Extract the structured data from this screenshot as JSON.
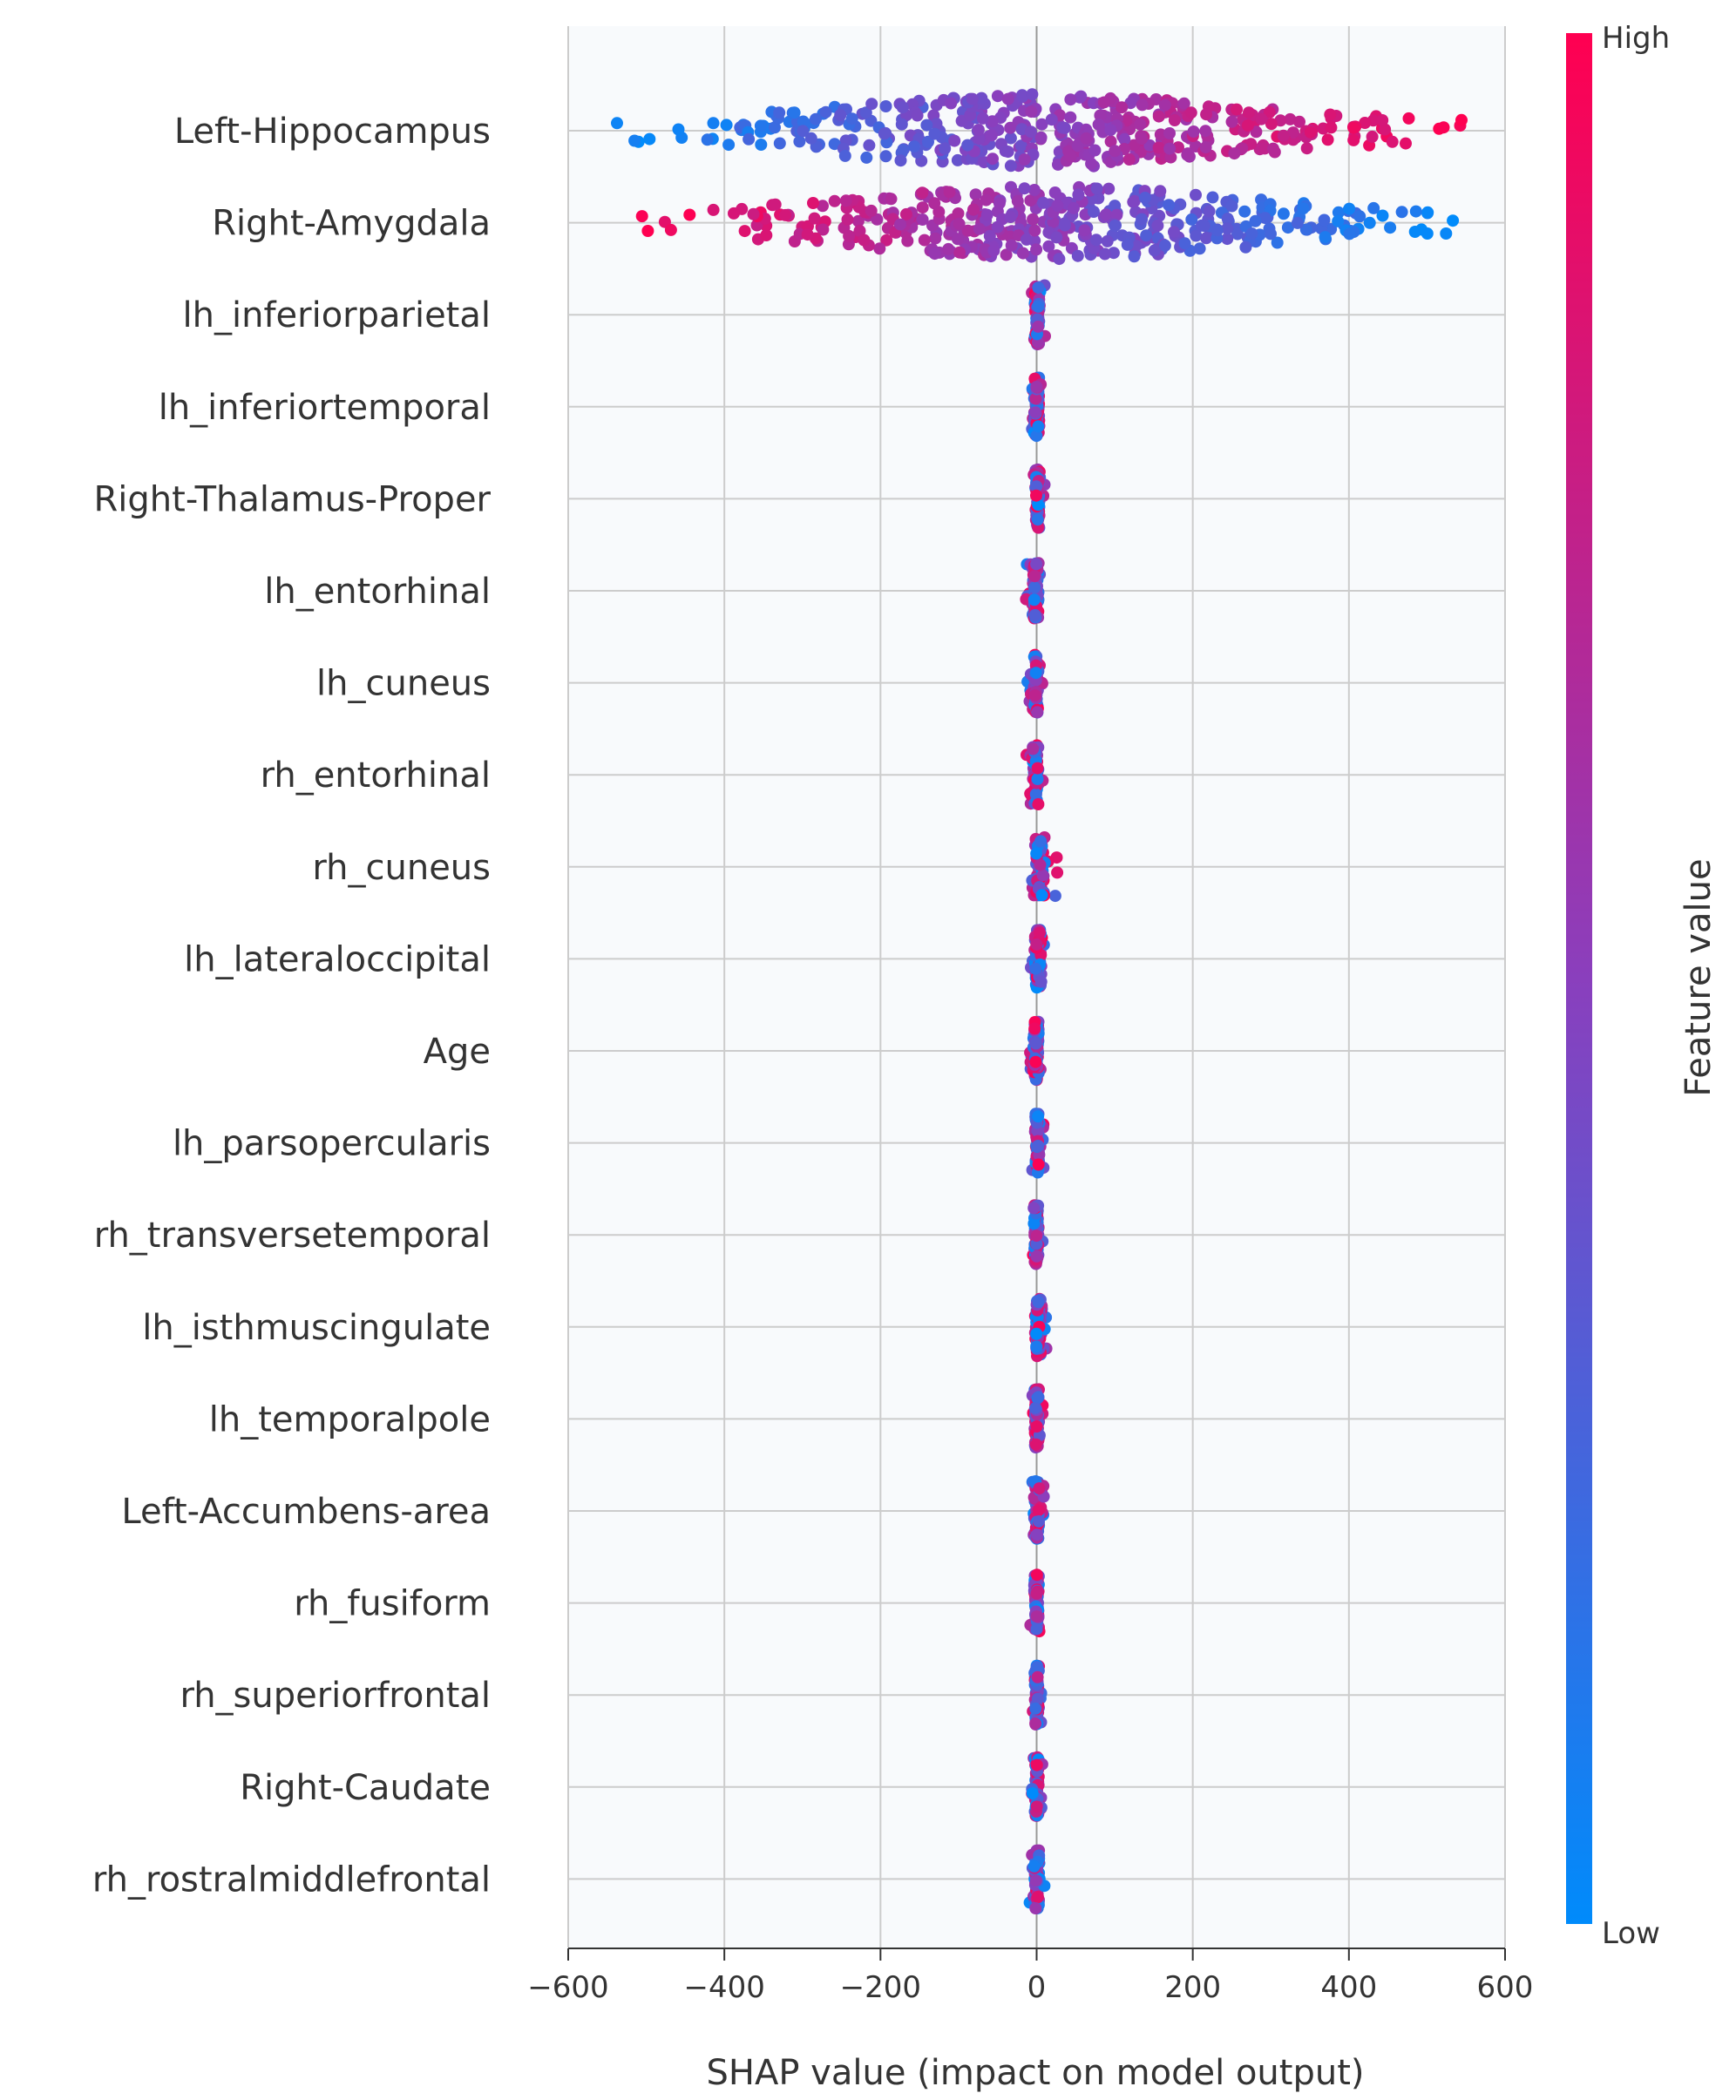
{
  "chart_data": {
    "type": "scatter",
    "subtype": "shap-beeswarm",
    "xlabel": "SHAP value (impact on model output)",
    "xlim": [
      -600,
      600
    ],
    "xticks": [
      -600,
      -400,
      -200,
      0,
      200,
      400,
      600
    ],
    "xtick_labels": [
      "−600",
      "−400",
      "−200",
      "0",
      "200",
      "400",
      "600"
    ],
    "grid": true,
    "colorbar": {
      "label": "Feature value",
      "high_label": "High",
      "low_label": "Low",
      "low_color": "#008bfb",
      "mid_color": "#8a3fbd",
      "high_color": "#ff0051"
    },
    "features": [
      {
        "name": "Left-Hippocampus",
        "range": [
          -550,
          560
        ],
        "direction": "positive"
      },
      {
        "name": "Right-Amygdala",
        "range": [
          -525,
          555
        ],
        "direction": "negative"
      },
      {
        "name": "lh_inferiorparietal",
        "range": [
          -8,
          12
        ],
        "direction": "mixed"
      },
      {
        "name": "lh_inferiortemporal",
        "range": [
          -10,
          10
        ],
        "direction": "mixed"
      },
      {
        "name": "Right-Thalamus-Proper",
        "range": [
          -6,
          12
        ],
        "direction": "mixed"
      },
      {
        "name": "lh_entorhinal",
        "range": [
          -14,
          8
        ],
        "direction": "mixed"
      },
      {
        "name": "lh_cuneus",
        "range": [
          -12,
          8
        ],
        "direction": "mixed"
      },
      {
        "name": "rh_entorhinal",
        "range": [
          -14,
          8
        ],
        "direction": "mixed"
      },
      {
        "name": "rh_cuneus",
        "range": [
          -6,
          30
        ],
        "direction": "mixed"
      },
      {
        "name": "lh_lateraloccipital",
        "range": [
          -8,
          16
        ],
        "direction": "mixed"
      },
      {
        "name": "Age",
        "range": [
          -12,
          8
        ],
        "direction": "mixed"
      },
      {
        "name": "lh_parsopercularis",
        "range": [
          -6,
          10
        ],
        "direction": "mixed"
      },
      {
        "name": "rh_transversetemporal",
        "range": [
          -10,
          8
        ],
        "direction": "mixed"
      },
      {
        "name": "lh_isthmuscingulate",
        "range": [
          -6,
          18
        ],
        "direction": "mixed"
      },
      {
        "name": "lh_temporalpole",
        "range": [
          -8,
          8
        ],
        "direction": "mixed"
      },
      {
        "name": "Left-Accumbens-area",
        "range": [
          -10,
          12
        ],
        "direction": "mixed"
      },
      {
        "name": "rh_fusiform",
        "range": [
          -8,
          8
        ],
        "direction": "mixed"
      },
      {
        "name": "rh_superiorfrontal",
        "range": [
          -6,
          6
        ],
        "direction": "mixed"
      },
      {
        "name": "Right-Caudate",
        "range": [
          -6,
          8
        ],
        "direction": "mixed"
      },
      {
        "name": "rh_rostralmiddlefrontal",
        "range": [
          -10,
          10
        ],
        "direction": "mixed"
      }
    ]
  }
}
